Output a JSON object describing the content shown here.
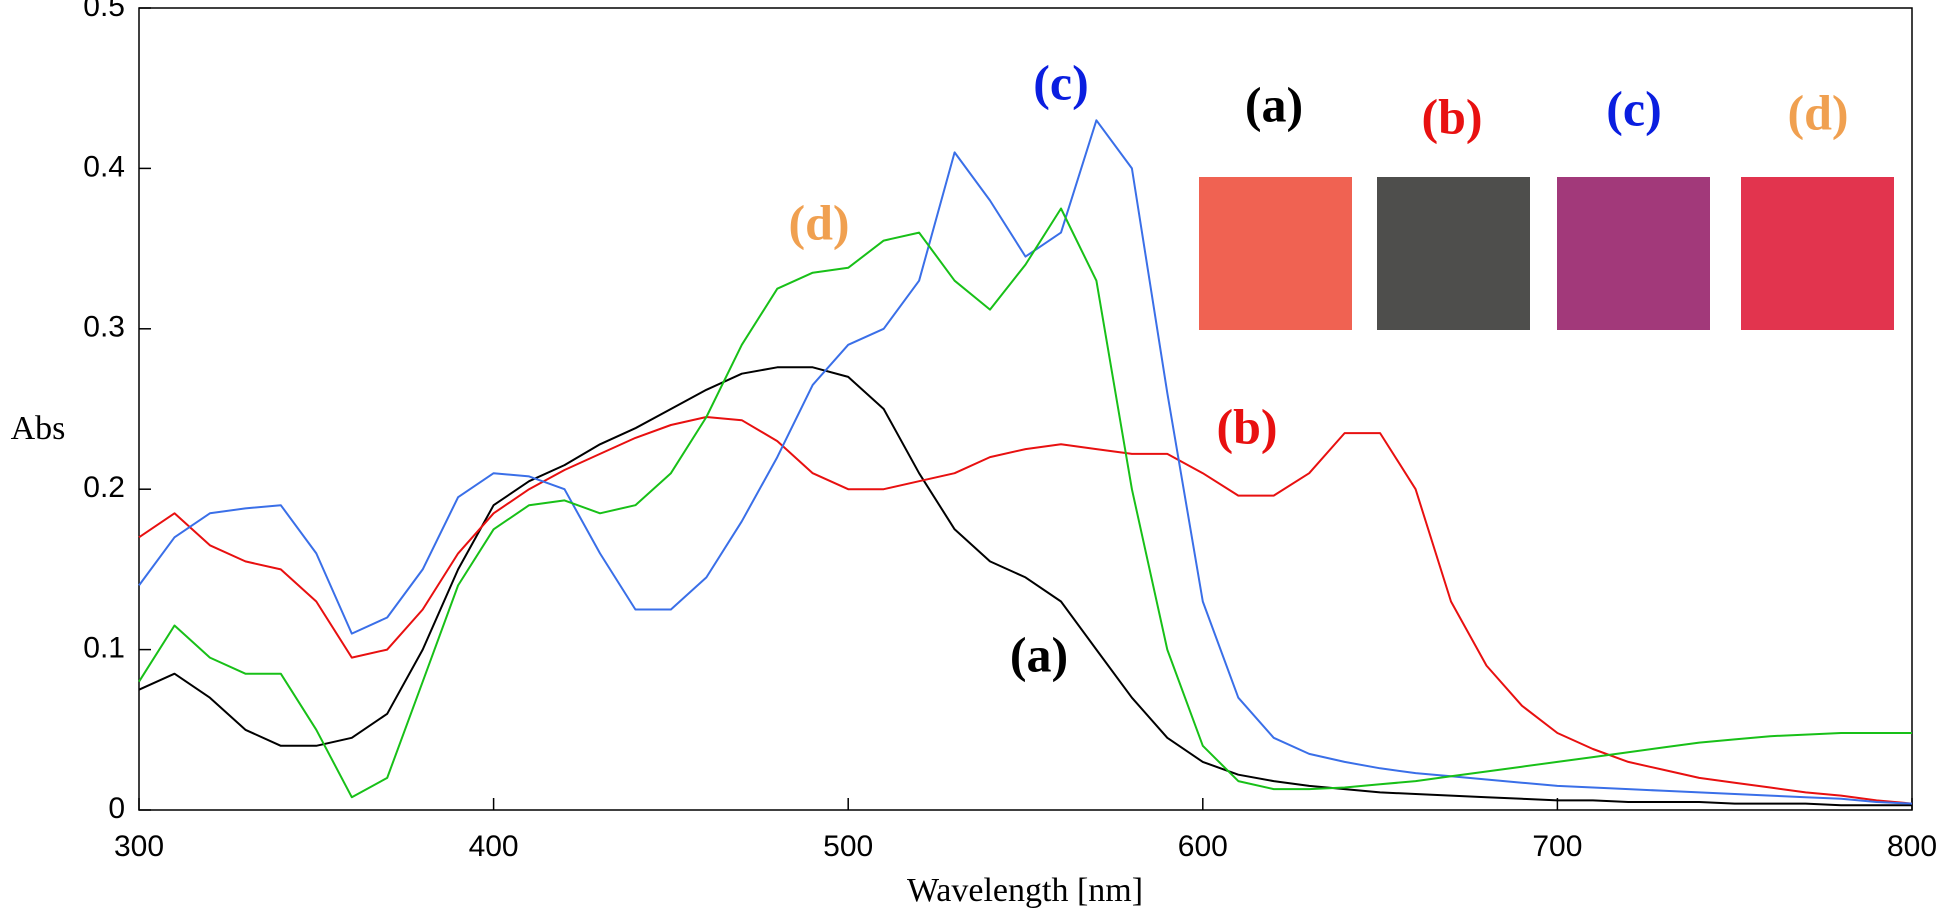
{
  "chart_data": {
    "type": "line",
    "xlabel": "Wavelength [nm]",
    "ylabel": "Abs",
    "xlim": [
      300,
      800
    ],
    "ylim": [
      0,
      0.5
    ],
    "xticks": [
      300,
      400,
      500,
      600,
      700,
      800
    ],
    "yticks": [
      0,
      0.1,
      0.2,
      0.3,
      0.4,
      0.5
    ],
    "x": [
      300,
      310,
      320,
      330,
      340,
      350,
      360,
      370,
      380,
      390,
      400,
      410,
      420,
      430,
      440,
      450,
      460,
      470,
      480,
      490,
      500,
      510,
      520,
      530,
      540,
      550,
      560,
      570,
      580,
      590,
      600,
      610,
      620,
      630,
      640,
      650,
      660,
      670,
      680,
      690,
      700,
      710,
      720,
      730,
      740,
      750,
      760,
      770,
      780,
      790,
      800
    ],
    "series": [
      {
        "name": "(a)",
        "color": "#000000",
        "label_color": "#000000",
        "swatch_color": "#f06252",
        "values": [
          0.075,
          0.085,
          0.07,
          0.05,
          0.04,
          0.04,
          0.045,
          0.06,
          0.1,
          0.15,
          0.19,
          0.205,
          0.215,
          0.228,
          0.238,
          0.25,
          0.262,
          0.272,
          0.276,
          0.276,
          0.27,
          0.25,
          0.21,
          0.175,
          0.155,
          0.145,
          0.13,
          0.1,
          0.07,
          0.045,
          0.03,
          0.022,
          0.018,
          0.015,
          0.013,
          0.011,
          0.01,
          0.009,
          0.008,
          0.007,
          0.006,
          0.006,
          0.005,
          0.005,
          0.005,
          0.004,
          0.004,
          0.004,
          0.003,
          0.003,
          0.003
        ]
      },
      {
        "name": "(b)",
        "color": "#e81010",
        "label_color": "#e81010",
        "swatch_color": "#4e4e4c",
        "values": [
          0.17,
          0.185,
          0.165,
          0.155,
          0.15,
          0.13,
          0.095,
          0.1,
          0.125,
          0.16,
          0.185,
          0.2,
          0.212,
          0.222,
          0.232,
          0.24,
          0.245,
          0.243,
          0.23,
          0.21,
          0.2,
          0.2,
          0.205,
          0.21,
          0.22,
          0.225,
          0.228,
          0.225,
          0.222,
          0.222,
          0.21,
          0.196,
          0.196,
          0.21,
          0.235,
          0.235,
          0.2,
          0.13,
          0.09,
          0.065,
          0.048,
          0.038,
          0.03,
          0.025,
          0.02,
          0.017,
          0.014,
          0.011,
          0.009,
          0.006,
          0.004
        ]
      },
      {
        "name": "(c)",
        "color": "#3a6fe8",
        "label_color": "#0a1ee0",
        "swatch_color": "#a2397a",
        "values": [
          0.14,
          0.17,
          0.185,
          0.188,
          0.19,
          0.16,
          0.11,
          0.12,
          0.15,
          0.195,
          0.21,
          0.208,
          0.2,
          0.16,
          0.125,
          0.125,
          0.145,
          0.18,
          0.22,
          0.265,
          0.29,
          0.3,
          0.33,
          0.41,
          0.38,
          0.345,
          0.36,
          0.43,
          0.4,
          0.26,
          0.13,
          0.07,
          0.045,
          0.035,
          0.03,
          0.026,
          0.023,
          0.021,
          0.019,
          0.017,
          0.015,
          0.014,
          0.013,
          0.012,
          0.011,
          0.01,
          0.009,
          0.008,
          0.007,
          0.005,
          0.004
        ]
      },
      {
        "name": "(d)",
        "color": "#18c018",
        "label_color": "#f0a050",
        "swatch_color": "#e2344e",
        "values": [
          0.08,
          0.115,
          0.095,
          0.085,
          0.085,
          0.05,
          0.008,
          0.02,
          0.08,
          0.14,
          0.175,
          0.19,
          0.193,
          0.185,
          0.19,
          0.21,
          0.245,
          0.29,
          0.325,
          0.335,
          0.338,
          0.355,
          0.36,
          0.33,
          0.312,
          0.34,
          0.375,
          0.33,
          0.2,
          0.1,
          0.04,
          0.018,
          0.013,
          0.013,
          0.014,
          0.016,
          0.018,
          0.021,
          0.024,
          0.027,
          0.03,
          0.033,
          0.036,
          0.039,
          0.042,
          0.044,
          0.046,
          0.047,
          0.048,
          0.048,
          0.048
        ]
      }
    ]
  }
}
